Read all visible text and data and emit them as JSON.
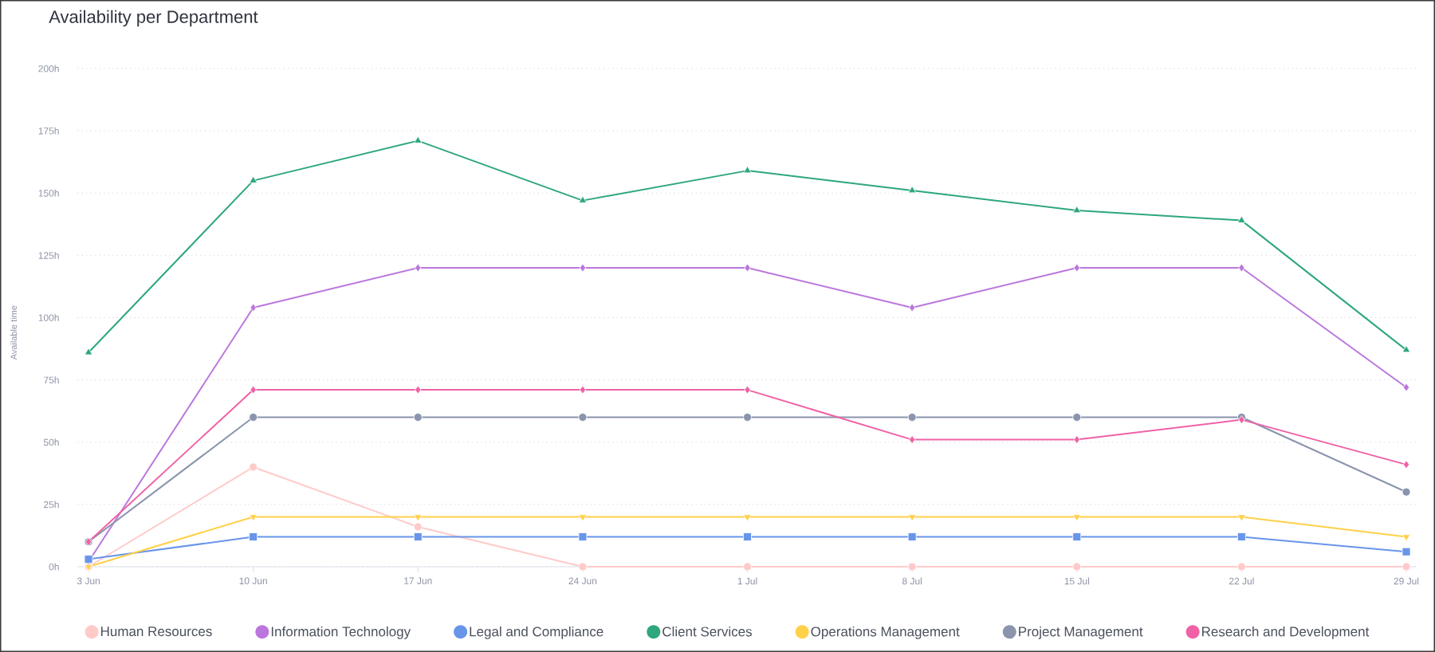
{
  "chart_data": {
    "type": "line",
    "title": "Availability per Department",
    "ylabel": "Available time",
    "categories": [
      "3 Jun",
      "10 Jun",
      "17 Jun",
      "24 Jun",
      "1 Jul",
      "8 Jul",
      "15 Jul",
      "22 Jul",
      "29 Jul"
    ],
    "series": [
      {
        "name": "Human Resources",
        "color": "#ffcaca",
        "marker": "circle",
        "values": [
          0,
          40,
          16,
          0,
          0,
          0,
          0,
          0,
          0
        ]
      },
      {
        "name": "Information Technology",
        "color": "#bb77dd",
        "marker": "diamond",
        "values": [
          2,
          104,
          120,
          120,
          120,
          104,
          120,
          120,
          72
        ]
      },
      {
        "name": "Legal and Compliance",
        "color": "#6895ea",
        "marker": "square",
        "values": [
          3,
          12,
          12,
          12,
          12,
          12,
          12,
          12,
          6
        ]
      },
      {
        "name": "Client Services",
        "color": "#2da77b",
        "marker": "triangle",
        "values": [
          86,
          155,
          171,
          147,
          159,
          151,
          143,
          139,
          87
        ]
      },
      {
        "name": "Operations Management",
        "color": "#ffd04a",
        "marker": "triangle_down",
        "values": [
          0,
          20,
          20,
          20,
          20,
          20,
          20,
          20,
          12
        ]
      },
      {
        "name": "Project Management",
        "color": "#8a94ad",
        "marker": "circle",
        "values": [
          10,
          60,
          60,
          60,
          60,
          60,
          60,
          60,
          30
        ]
      },
      {
        "name": "Research and Development",
        "color": "#ef62a6",
        "marker": "diamond",
        "values": [
          10,
          71,
          71,
          71,
          71,
          51,
          51,
          59,
          41
        ]
      }
    ],
    "ylim": [
      0,
      200
    ],
    "yticks": [
      {
        "value": 0,
        "label": "0h"
      },
      {
        "value": 25,
        "label": "25h"
      },
      {
        "value": 50,
        "label": "50h"
      },
      {
        "value": 75,
        "label": "75h"
      },
      {
        "value": 100,
        "label": "100h"
      },
      {
        "value": 125,
        "label": "125h"
      },
      {
        "value": 150,
        "label": "150h"
      },
      {
        "value": 175,
        "label": "175h"
      },
      {
        "value": 200,
        "label": "200h"
      }
    ],
    "grid": "y",
    "legend": "bottom",
    "line_style": "solid"
  }
}
